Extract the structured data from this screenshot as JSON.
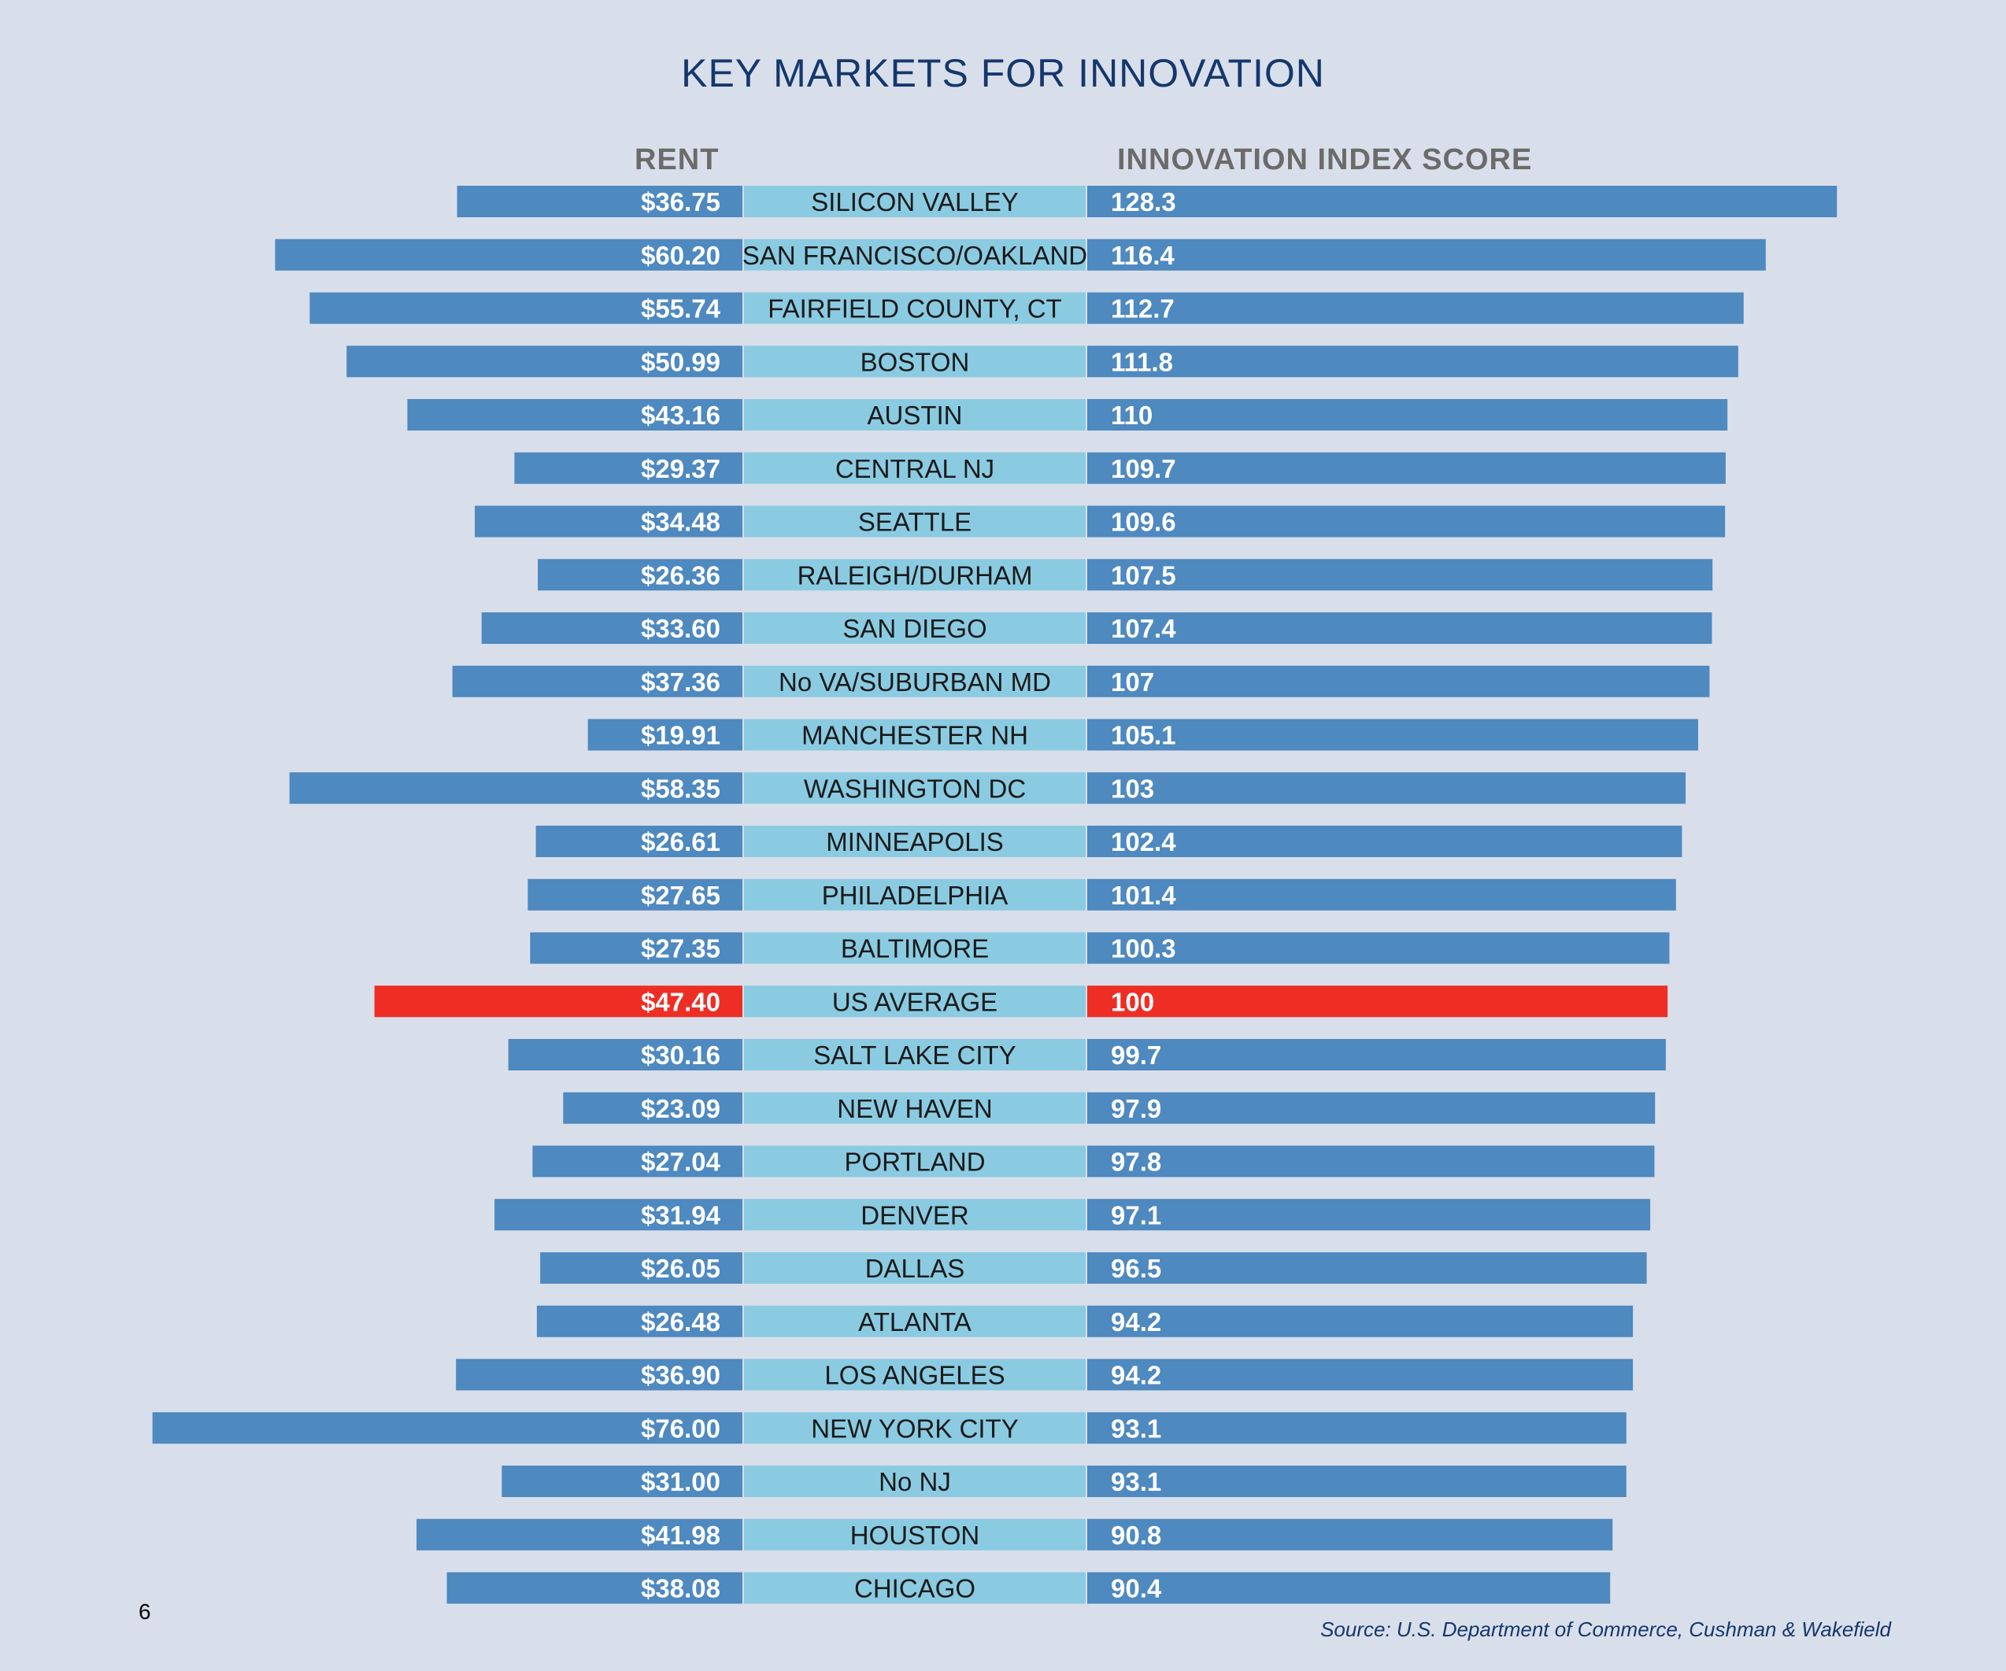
{
  "page_number": "6",
  "source": "Source: U.S. Department of Commerce, Cushman & Wakefield",
  "colors": {
    "rent_bar": "#4e89c0",
    "score_bar": "#4e89c0",
    "market_band": "#8acbe2",
    "highlight": "#ee2e24",
    "background": "#d9dfea",
    "title": "#14376d"
  },
  "chart_data": {
    "type": "bar",
    "title": "KEY MARKETS FOR INNOVATION",
    "left_header": "RENT",
    "right_header": "INNOVATION INDEX SCORE",
    "highlight_category": "US AVERAGE",
    "categories": [
      "SILICON VALLEY",
      "SAN FRANCISCO/OAKLAND",
      "FAIRFIELD COUNTY, CT",
      "BOSTON",
      "AUSTIN",
      "CENTRAL NJ",
      "SEATTLE",
      "RALEIGH/DURHAM",
      "SAN DIEGO",
      "No VA/SUBURBAN MD",
      "MANCHESTER NH",
      "WASHINGTON DC",
      "MINNEAPOLIS",
      "PHILADELPHIA",
      "BALTIMORE",
      "US AVERAGE",
      "SALT LAKE CITY",
      "NEW HAVEN",
      "PORTLAND",
      "DENVER",
      "DALLAS",
      "ATLANTA",
      "LOS ANGELES",
      "NEW YORK CITY",
      "No NJ",
      "HOUSTON",
      "CHICAGO"
    ],
    "series": [
      {
        "name": "RENT",
        "values": [
          36.75,
          60.2,
          55.74,
          50.99,
          43.16,
          29.37,
          34.48,
          26.36,
          33.6,
          37.36,
          19.91,
          58.35,
          26.61,
          27.65,
          27.35,
          47.4,
          30.16,
          23.09,
          27.04,
          31.94,
          26.05,
          26.48,
          36.9,
          76.0,
          31.0,
          41.98,
          38.08
        ],
        "labels": [
          "$36.75",
          "$60.20",
          "$55.74",
          "$50.99",
          "$43.16",
          "$29.37",
          "$34.48",
          "$26.36",
          "$33.60",
          "$37.36",
          "$19.91",
          "$58.35",
          "$26.61",
          "$27.65",
          "$27.35",
          "$47.40",
          "$30.16",
          "$23.09",
          "$27.04",
          "$31.94",
          "$26.05",
          "$26.48",
          "$36.90",
          "$76.00",
          "$31.00",
          "$41.98",
          "$38.08"
        ]
      },
      {
        "name": "INNOVATION INDEX SCORE",
        "values": [
          128.3,
          116.4,
          112.7,
          111.8,
          110,
          109.7,
          109.6,
          107.5,
          107.4,
          107,
          105.1,
          103,
          102.4,
          101.4,
          100.3,
          100,
          99.7,
          97.9,
          97.8,
          97.1,
          96.5,
          94.2,
          94.2,
          93.1,
          93.1,
          90.8,
          90.4
        ],
        "labels": [
          "128.3",
          "116.4",
          "112.7",
          "111.8",
          "110",
          "109.7",
          "109.6",
          "107.5",
          "107.4",
          "107",
          "105.1",
          "103",
          "102.4",
          "101.4",
          "100.3",
          "100",
          "99.7",
          "97.9",
          "97.8",
          "97.1",
          "96.5",
          "94.2",
          "94.2",
          "93.1",
          "93.1",
          "90.8",
          "90.4"
        ]
      }
    ]
  }
}
